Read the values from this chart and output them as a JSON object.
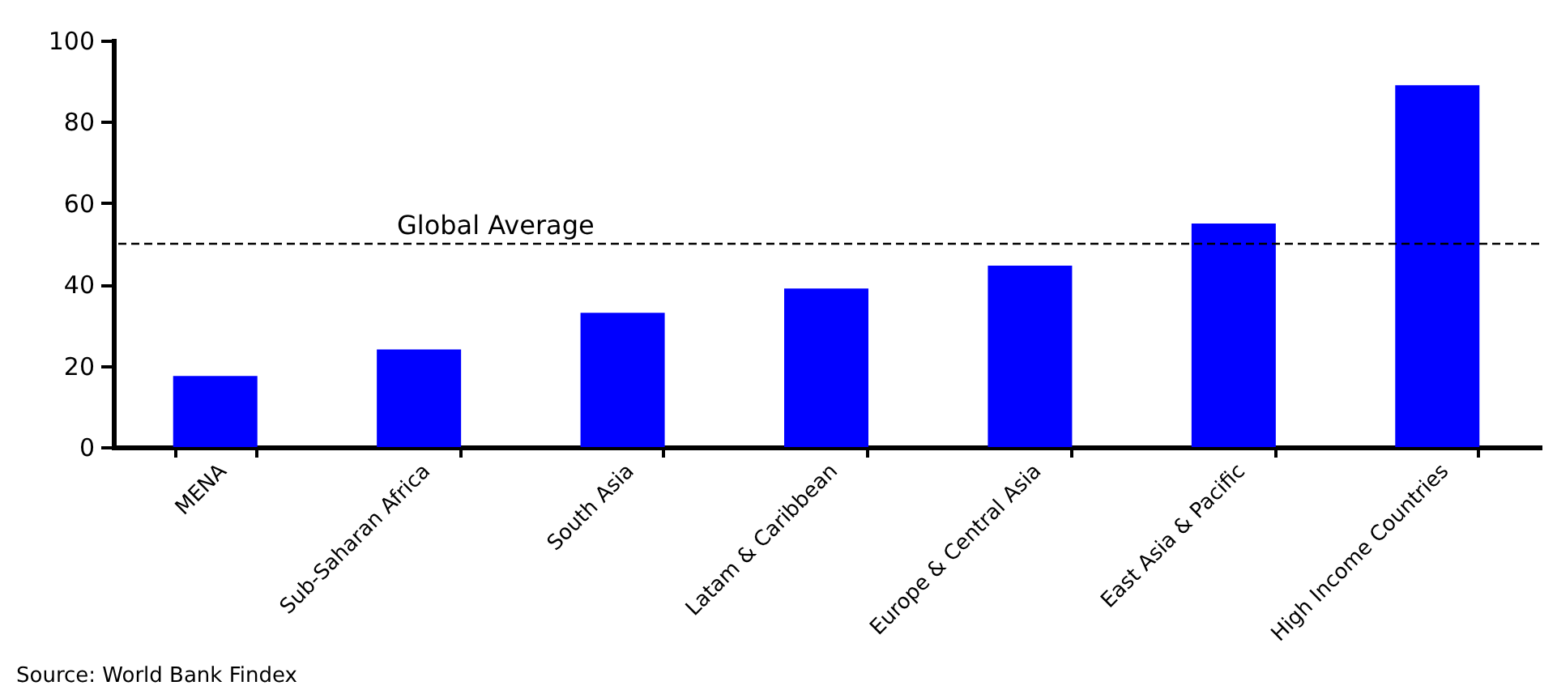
{
  "chart_data": {
    "type": "bar",
    "categories": [
      "MENA",
      "Sub-Saharan Africa",
      "South Asia",
      "Latam & Caribbean",
      "Europe & Central Asia",
      "East Asia & Pacific",
      "High Income Countries"
    ],
    "values": [
      17.5,
      24,
      33,
      39,
      44.6,
      55,
      89
    ],
    "color": "#0000ff",
    "ylim": [
      0,
      100
    ],
    "yticks": [
      0,
      20,
      40,
      60,
      80,
      100
    ],
    "grid": false,
    "ref_lines": [
      {
        "axis": "y",
        "value": 50,
        "label": "Global Average",
        "color": "#000000",
        "line_style": "dashed"
      }
    ],
    "annotations": [
      "Source: World Bank Findex"
    ]
  }
}
